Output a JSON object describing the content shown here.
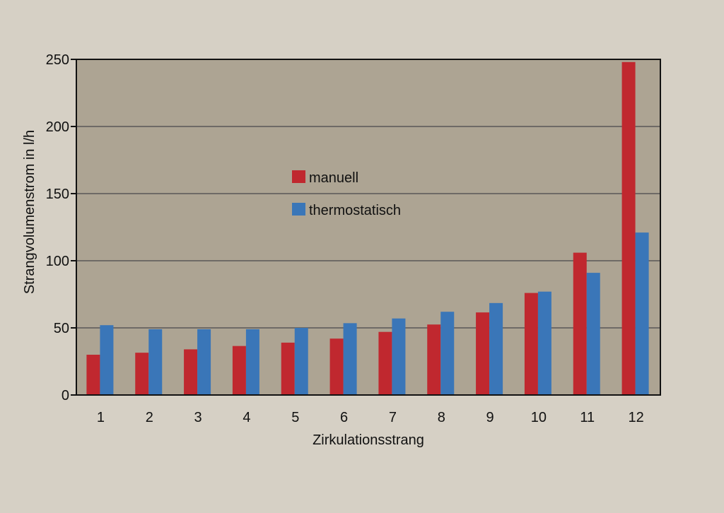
{
  "chart_data": {
    "type": "bar",
    "categories": [
      "1",
      "2",
      "3",
      "4",
      "5",
      "6",
      "7",
      "8",
      "9",
      "10",
      "11",
      "12"
    ],
    "series": [
      {
        "name": "manuell",
        "color": "#c0282f",
        "values": [
          30,
          31.5,
          34,
          36.5,
          39,
          42,
          47,
          52.5,
          61.5,
          76,
          106,
          248
        ]
      },
      {
        "name": "thermostatisch",
        "color": "#3a76b8",
        "values": [
          52,
          49,
          49,
          49,
          50,
          53.5,
          57,
          62,
          68.5,
          77,
          91,
          121
        ]
      }
    ],
    "xlabel": "Zirkulationsstrang",
    "ylabel": "Strangvolumenstrom in l/h",
    "ylim": [
      0,
      250
    ],
    "yticks": [
      "0",
      "50",
      "100",
      "150",
      "200",
      "250"
    ],
    "grid": true,
    "legend_position": "center-left inside plot",
    "plot_background": "#ada493",
    "page_background": "#d6d0c5"
  }
}
